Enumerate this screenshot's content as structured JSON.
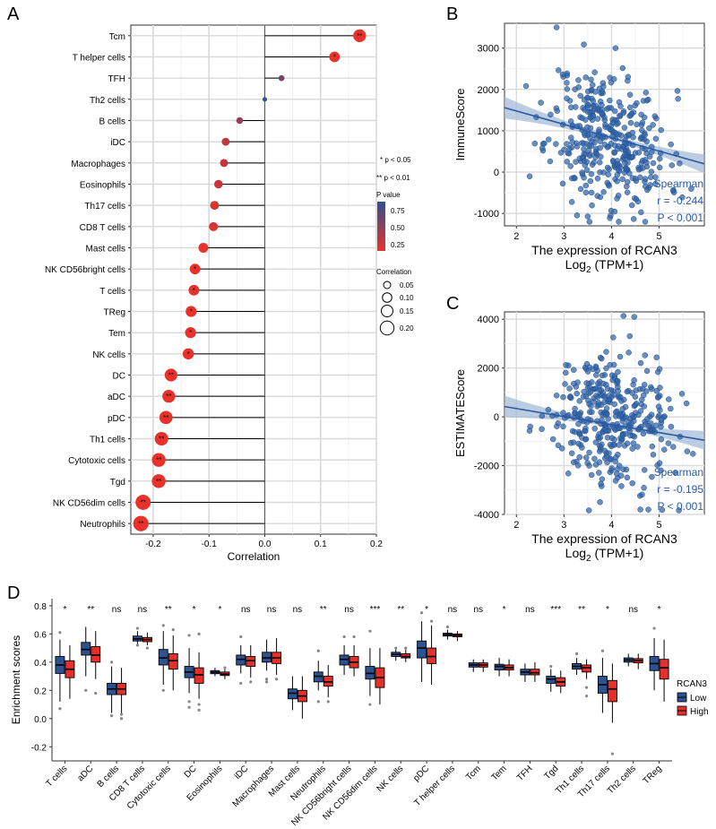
{
  "figure": {
    "panel_labels": [
      "A",
      "B",
      "C",
      "D"
    ]
  },
  "chart_data": [
    {
      "panel": "A",
      "type": "lollipop",
      "xlabel": "Correlation",
      "xlim": [
        -0.24,
        0.2
      ],
      "xticks": [
        -0.2,
        -0.1,
        0.0,
        0.1,
        0.2
      ],
      "xtick_labels": [
        "-0.2",
        "-0.1",
        "0.0",
        "0.1",
        "0.2"
      ],
      "categories": [
        "Tcm",
        "T helper cells",
        "TFH",
        "Th2 cells",
        "B cells",
        "iDC",
        "Macrophages",
        "Eosinophils",
        "Th17 cells",
        "CD8 T cells",
        "Mast cells",
        "NK CD56bright cells",
        "T cells",
        "TReg",
        "Tem",
        "NK cells",
        "DC",
        "aDC",
        "pDC",
        "Th1 cells",
        "Cytotoxic cells",
        "Tgd",
        "NK CD56dim cells",
        "Neutrophils"
      ],
      "correlation": [
        0.17,
        0.125,
        0.03,
        0.0,
        -0.045,
        -0.07,
        -0.073,
        -0.083,
        -0.09,
        -0.092,
        -0.11,
        -0.125,
        -0.127,
        -0.132,
        -0.133,
        -0.137,
        -0.168,
        -0.172,
        -0.177,
        -0.185,
        -0.19,
        -0.19,
        -0.218,
        -0.222
      ],
      "pvalue": [
        0.003,
        0.02,
        0.6,
        0.95,
        0.45,
        0.25,
        0.22,
        0.18,
        0.13,
        0.12,
        0.06,
        0.02,
        0.019,
        0.016,
        0.015,
        0.013,
        0.002,
        0.002,
        0.002,
        0.001,
        0.001,
        0.001,
        0.0005,
        0.0004
      ],
      "significance": [
        "**",
        "*",
        "",
        "",
        "",
        "",
        "",
        "",
        "",
        "",
        "",
        "*",
        "*",
        "*",
        "*",
        "*",
        "**",
        "**",
        "**",
        "**",
        "**",
        "**",
        "**",
        "**"
      ],
      "legend": {
        "note1": "* p < 0.05",
        "note2": "** p < 0.01",
        "color_title": "P value",
        "color_ticks": [
          "0.75",
          "0.50",
          "0.25"
        ],
        "size_title": "Correlation",
        "size_labels": [
          "0.05",
          "0.10",
          "0.15",
          "0.20"
        ],
        "color_low": "#e8312b",
        "color_high": "#2f4f8f"
      }
    },
    {
      "panel": "B",
      "type": "scatter",
      "ylabel": "ImmuneScore",
      "xlabel_line1": "The expression of RCAN3",
      "xlabel_line2_prefix": "Log",
      "xlabel_line2_sub": "2",
      "xlabel_line2_suffix": " (TPM+1)",
      "xlim": [
        1.75,
        5.95
      ],
      "ylim": [
        -1300,
        3600
      ],
      "xticks": [
        "2",
        "3",
        "4",
        "5"
      ],
      "yticks": [
        "-1000",
        "0",
        "1000",
        "2000",
        "3000"
      ],
      "regression": {
        "x": [
          1.75,
          5.95
        ],
        "y": [
          1560,
          200
        ]
      },
      "annotation": [
        "Spearman",
        "r = -0.244",
        "P < 0.001"
      ],
      "n_points": 380,
      "x_mean": 3.95,
      "x_sd": 0.62,
      "y_mean": 780,
      "y_sd": 830,
      "seed": 11,
      "point_color": "#2f62a8"
    },
    {
      "panel": "C",
      "type": "scatter",
      "ylabel": "ESTIMATEScore",
      "xlabel_line1": "The expression of RCAN3",
      "xlabel_line2_prefix": "Log",
      "xlabel_line2_sub": "2",
      "xlabel_line2_suffix": " (TPM+1)",
      "xlim": [
        1.75,
        5.95
      ],
      "ylim": [
        -4000,
        4300
      ],
      "xticks": [
        "2",
        "3",
        "4",
        "5"
      ],
      "yticks": [
        "-4000",
        "-2000",
        "0",
        "2000",
        "4000"
      ],
      "regression": {
        "x": [
          1.75,
          5.95
        ],
        "y": [
          420,
          -960
        ]
      },
      "annotation": [
        "Spearman",
        "r = -0.195",
        "P < 0.001"
      ],
      "n_points": 380,
      "x_mean": 3.95,
      "x_sd": 0.62,
      "y_mean": -80,
      "y_sd": 1350,
      "seed": 29,
      "point_color": "#2f62a8"
    },
    {
      "panel": "D",
      "type": "boxplot",
      "ylabel": "Enrichment scores",
      "ylim": [
        -0.3,
        0.85
      ],
      "yticks": [
        -0.2,
        0.0,
        0.2,
        0.4,
        0.6,
        0.8
      ],
      "ytick_labels": [
        "-0.2",
        "0.0",
        "0.2",
        "0.4",
        "0.6",
        "0.8"
      ],
      "categories": [
        "T cells",
        "aDC",
        "B cells",
        "CD8 T cells",
        "Cytotoxic cells",
        "DC",
        "Eosinophils",
        "iDC",
        "Macrophages",
        "Mast cells",
        "Neutrophils",
        "NK CD56bright cells",
        "NK CD56dim cells",
        "NK cells",
        "pDC",
        "T helper cells",
        "Tcm",
        "Tem",
        "TFH",
        "Tgd",
        "Th1 cells",
        "Th17 cells",
        "Th2 cells",
        "TReg"
      ],
      "significance": [
        "*",
        "**",
        "ns",
        "ns",
        "**",
        "*",
        "*",
        "ns",
        "ns",
        "ns",
        "**",
        "ns",
        "***",
        "**",
        "*",
        "ns",
        "ns",
        "*",
        "ns",
        "***",
        "**",
        "*",
        "ns",
        "*"
      ],
      "series": [
        {
          "name": "Low",
          "color": "#2c5291",
          "stats": [
            [
              0.12,
              0.32,
              0.38,
              0.44,
              0.56
            ],
            [
              0.3,
              0.45,
              0.49,
              0.54,
              0.65
            ],
            [
              0.04,
              0.17,
              0.21,
              0.25,
              0.37
            ],
            [
              0.51,
              0.55,
              0.565,
              0.585,
              0.62
            ],
            [
              0.24,
              0.38,
              0.43,
              0.49,
              0.62
            ],
            [
              0.18,
              0.29,
              0.33,
              0.37,
              0.5
            ],
            [
              0.3,
              0.318,
              0.328,
              0.34,
              0.36
            ],
            [
              0.32,
              0.38,
              0.42,
              0.45,
              0.52
            ],
            [
              0.34,
              0.4,
              0.43,
              0.47,
              0.56
            ],
            [
              0.06,
              0.14,
              0.18,
              0.21,
              0.3
            ],
            [
              0.2,
              0.26,
              0.3,
              0.33,
              0.41
            ],
            [
              0.31,
              0.38,
              0.42,
              0.45,
              0.52
            ],
            [
              0.16,
              0.28,
              0.32,
              0.37,
              0.5
            ],
            [
              0.41,
              0.44,
              0.455,
              0.47,
              0.49
            ],
            [
              0.26,
              0.43,
              0.5,
              0.55,
              0.69
            ],
            [
              0.56,
              0.585,
              0.595,
              0.605,
              0.63
            ],
            [
              0.33,
              0.365,
              0.38,
              0.395,
              0.42
            ],
            [
              0.3,
              0.345,
              0.37,
              0.385,
              0.43
            ],
            [
              0.26,
              0.31,
              0.33,
              0.35,
              0.39
            ],
            [
              0.19,
              0.25,
              0.28,
              0.3,
              0.35
            ],
            [
              0.31,
              0.35,
              0.37,
              0.39,
              0.43
            ],
            [
              0.04,
              0.18,
              0.24,
              0.3,
              0.43
            ],
            [
              0.37,
              0.4,
              0.415,
              0.43,
              0.46
            ],
            [
              0.2,
              0.34,
              0.39,
              0.44,
              0.57
            ]
          ],
          "outliers": [
            [
              0.07,
              0.61
            ],
            [
              0.2
            ],
            [
              0.02,
              0.4
            ],
            [
              0.52,
              0.64
            ],
            [
              0.2,
              0.66
            ],
            [
              0.08,
              0.12,
              0.59
            ],
            [],
            [
              0.25,
              0.58
            ],
            [
              0.26,
              0.28
            ],
            [],
            [
              0.12,
              0.48
            ],
            [
              0.58
            ],
            [
              0.1,
              0.62
            ],
            [
              0.5
            ],
            [
              0.75
            ],
            [
              0.65
            ],
            [],
            [],
            [],
            [
              0.37
            ],
            [
              0.46
            ],
            [
              0.48
            ],
            [],
            [
              0.64
            ]
          ]
        },
        {
          "name": "High",
          "color": "#e4302b",
          "stats": [
            [
              0.14,
              0.29,
              0.35,
              0.41,
              0.52
            ],
            [
              0.28,
              0.4,
              0.45,
              0.51,
              0.62
            ],
            [
              0.02,
              0.17,
              0.21,
              0.25,
              0.36
            ],
            [
              0.52,
              0.545,
              0.56,
              0.575,
              0.61
            ],
            [
              0.2,
              0.35,
              0.41,
              0.46,
              0.59
            ],
            [
              0.14,
              0.25,
              0.31,
              0.36,
              0.47
            ],
            [
              0.28,
              0.305,
              0.315,
              0.33,
              0.35
            ],
            [
              0.29,
              0.37,
              0.41,
              0.44,
              0.52
            ],
            [
              0.31,
              0.39,
              0.43,
              0.47,
              0.57
            ],
            [
              0.0,
              0.12,
              0.16,
              0.2,
              0.3
            ],
            [
              0.15,
              0.23,
              0.26,
              0.3,
              0.38
            ],
            [
              0.3,
              0.36,
              0.4,
              0.44,
              0.52
            ],
            [
              0.1,
              0.22,
              0.29,
              0.36,
              0.5
            ],
            [
              0.4,
              0.43,
              0.44,
              0.46,
              0.49
            ],
            [
              0.24,
              0.39,
              0.44,
              0.5,
              0.66
            ],
            [
              0.55,
              0.58,
              0.59,
              0.6,
              0.62
            ],
            [
              0.33,
              0.365,
              0.38,
              0.395,
              0.42
            ],
            [
              0.3,
              0.345,
              0.36,
              0.38,
              0.42
            ],
            [
              0.26,
              0.31,
              0.325,
              0.35,
              0.4
            ],
            [
              0.18,
              0.23,
              0.26,
              0.29,
              0.34
            ],
            [
              0.28,
              0.33,
              0.36,
              0.38,
              0.42
            ],
            [
              -0.03,
              0.12,
              0.21,
              0.27,
              0.39
            ],
            [
              0.35,
              0.395,
              0.41,
              0.425,
              0.46
            ],
            [
              0.12,
              0.28,
              0.36,
              0.42,
              0.56
            ]
          ],
          "outliers": [
            [],
            [
              0.18
            ],
            [
              0.0,
              0.03
            ],
            [
              0.5
            ],
            [
              0.63
            ],
            [
              0.06,
              0.1,
              0.6
            ],
            [
              0.36
            ],
            [
              0.26
            ],
            [
              0.28
            ],
            [],
            [
              0.12
            ],
            [
              0.58
            ],
            [],
            [
              0.5
            ],
            [
              0.69
            ],
            [],
            [],
            [],
            [],
            [],
            [
              0.16,
              0.22
            ],
            [
              -0.25
            ],
            [],
            []
          ]
        }
      ],
      "legend_title": "RCAN3"
    }
  ]
}
